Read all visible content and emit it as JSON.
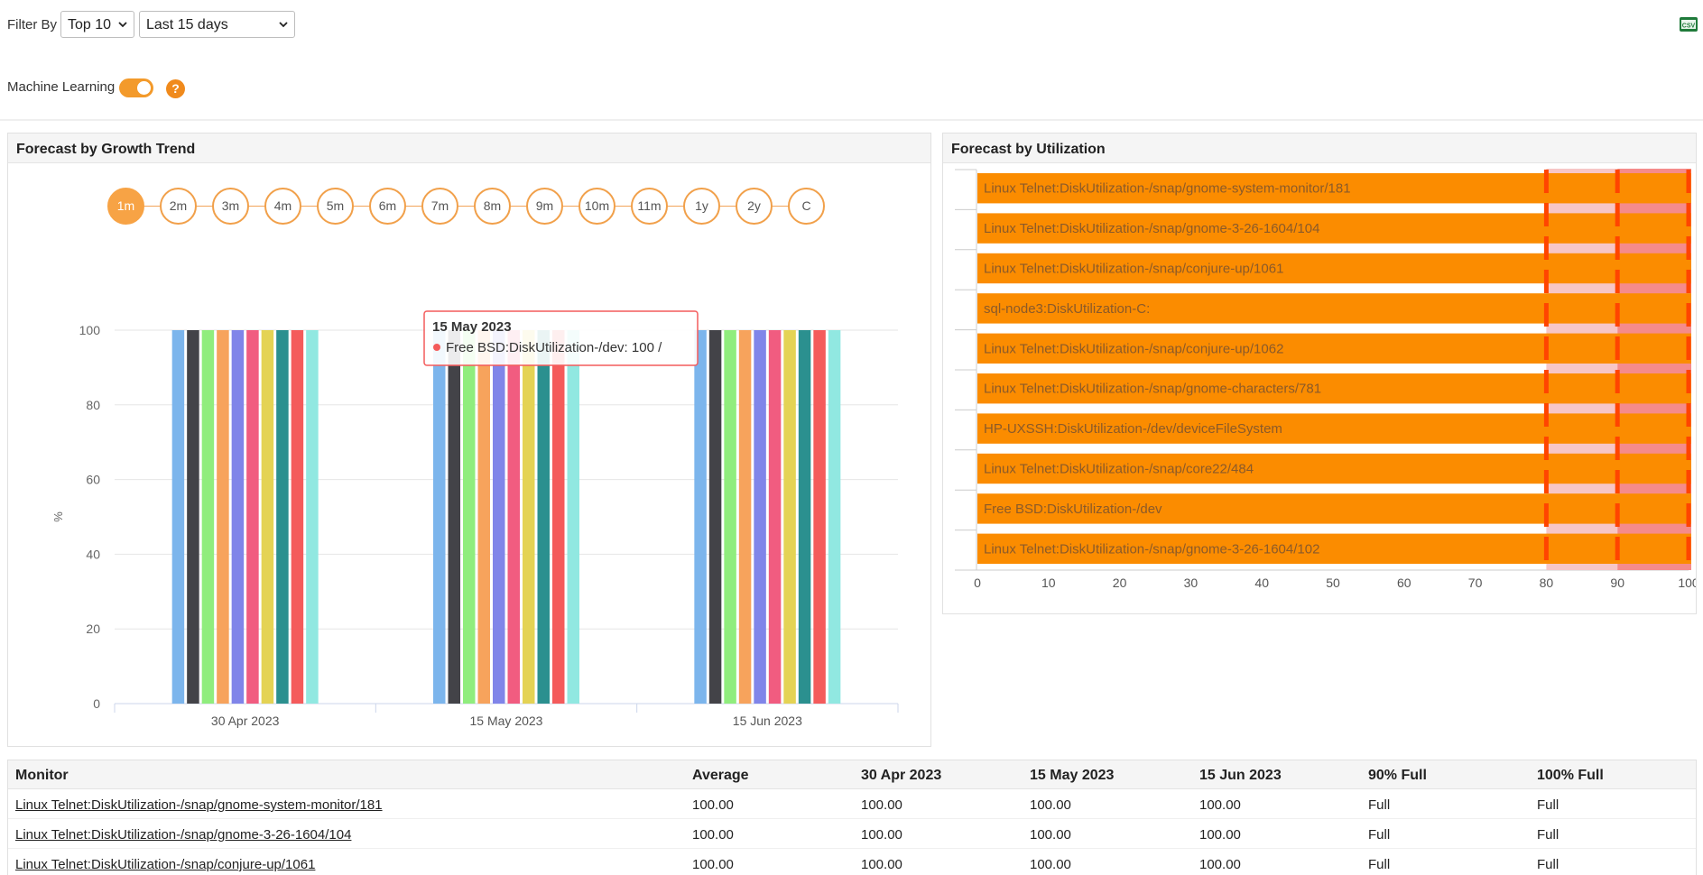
{
  "filter": {
    "label": "Filter By",
    "top_value": "Top 10",
    "period_value": "Last 15 days"
  },
  "ml": {
    "label": "Machine Learning",
    "enabled": true,
    "help": "?"
  },
  "icons": {
    "csv": "csv-export-icon",
    "chevron": "chevron-down-icon",
    "help": "help-icon"
  },
  "colors": {
    "accent": "#f39a2b",
    "bar": "#fb8c00",
    "threshold_90": "#f7c6c6",
    "threshold_100": "#f58b8b"
  },
  "growth_panel": {
    "title": "Forecast by Growth Trend",
    "periods": [
      "1m",
      "2m",
      "3m",
      "4m",
      "5m",
      "6m",
      "7m",
      "8m",
      "9m",
      "10m",
      "11m",
      "1y",
      "2y",
      "C"
    ],
    "active_period": "1m"
  },
  "util_panel": {
    "title": "Forecast by Utilization"
  },
  "chart_data": [
    {
      "type": "bar",
      "title": "Forecast by Growth Trend",
      "ylabel": "%",
      "ylim": [
        0,
        100
      ],
      "yticks": [
        0,
        20,
        40,
        60,
        80,
        100
      ],
      "categories": [
        "30 Apr 2023",
        "15 May 2023",
        "15 Jun 2023"
      ],
      "series": [
        {
          "color": "#7cb5ec",
          "values": [
            100,
            100,
            100
          ]
        },
        {
          "color": "#434348",
          "values": [
            100,
            100,
            100
          ]
        },
        {
          "color": "#90ed7d",
          "values": [
            100,
            100,
            100
          ]
        },
        {
          "color": "#f7a35c",
          "values": [
            100,
            100,
            100
          ]
        },
        {
          "color": "#8085e9",
          "values": [
            100,
            100,
            100
          ]
        },
        {
          "color": "#f15c80",
          "values": [
            100,
            100,
            100
          ]
        },
        {
          "color": "#e4d354",
          "values": [
            100,
            100,
            100
          ]
        },
        {
          "color": "#2b908f",
          "values": [
            100,
            100,
            100
          ]
        },
        {
          "color": "#f45b5b",
          "values": [
            100,
            100,
            100
          ]
        },
        {
          "color": "#91e8e1",
          "values": [
            100,
            100,
            100
          ]
        }
      ],
      "tooltip": {
        "date": "15 May 2023",
        "text": "Free BSD:DiskUtilization-/dev: 100 /",
        "series_index": 8,
        "category_index": 1
      },
      "legend": "none",
      "grid": true
    },
    {
      "type": "bar",
      "orientation": "horizontal",
      "title": "Forecast by Utilization",
      "xlim": [
        0,
        100
      ],
      "xticks": [
        0,
        10,
        20,
        30,
        40,
        50,
        60,
        70,
        80,
        90,
        100
      ],
      "thresholds": [
        80,
        90,
        100
      ],
      "categories": [
        "Linux Telnet:DiskUtilization-/snap/gnome-system-monitor/181",
        "Linux Telnet:DiskUtilization-/snap/gnome-3-26-1604/104",
        "Linux Telnet:DiskUtilization-/snap/conjure-up/1061",
        "sql-node3:DiskUtilization-C:",
        "Linux Telnet:DiskUtilization-/snap/conjure-up/1062",
        "Linux Telnet:DiskUtilization-/snap/gnome-characters/781",
        "HP-UXSSH:DiskUtilization-/dev/deviceFileSystem",
        "Linux Telnet:DiskUtilization-/snap/core22/484",
        "Free BSD:DiskUtilization-/dev",
        "Linux Telnet:DiskUtilization-/snap/gnome-3-26-1604/102"
      ],
      "values": [
        100,
        100,
        100,
        100,
        100,
        100,
        100,
        100,
        100,
        100
      ],
      "legend": "none",
      "grid": false
    }
  ],
  "table": {
    "headers": [
      "Monitor",
      "Average",
      "30 Apr 2023",
      "15 May 2023",
      "15 Jun 2023",
      "90% Full",
      "100% Full"
    ],
    "rows": [
      [
        "Linux Telnet:DiskUtilization-/snap/gnome-system-monitor/181",
        "100.00",
        "100.00",
        "100.00",
        "100.00",
        "Full",
        "Full"
      ],
      [
        "Linux Telnet:DiskUtilization-/snap/gnome-3-26-1604/104",
        "100.00",
        "100.00",
        "100.00",
        "100.00",
        "Full",
        "Full"
      ],
      [
        "Linux Telnet:DiskUtilization-/snap/conjure-up/1061",
        "100.00",
        "100.00",
        "100.00",
        "100.00",
        "Full",
        "Full"
      ]
    ]
  }
}
